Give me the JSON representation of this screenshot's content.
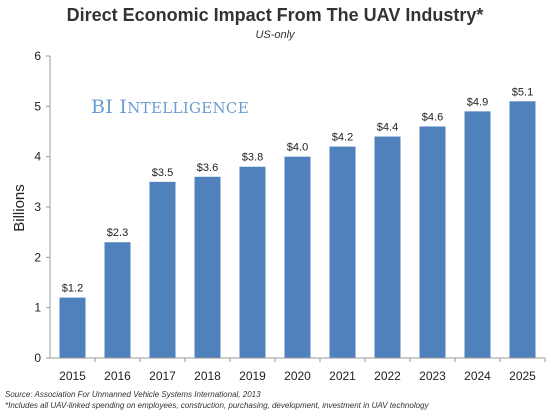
{
  "title": "Direct Economic Impact From The UAV Industry*",
  "subtitle": "US-only",
  "watermark": {
    "part1": "BI ",
    "part2": "I",
    "part3": "NTELLIGENCE"
  },
  "source": "Source: Association For Unmanned Vehicle Systems International, 2013",
  "footnote": "*Includes all UAV-linked spending on employees, construction, purchasing, development, investment in UAV technology",
  "colors": {
    "bar": "#4f81bd",
    "axis": "#999999"
  },
  "chart_data": {
    "type": "bar",
    "categories": [
      "2015",
      "2016",
      "2017",
      "2018",
      "2019",
      "2020",
      "2021",
      "2022",
      "2023",
      "2024",
      "2025"
    ],
    "values": [
      1.2,
      2.3,
      3.5,
      3.6,
      3.8,
      4.0,
      4.2,
      4.4,
      4.6,
      4.9,
      5.1
    ],
    "data_labels": [
      "$1.2",
      "$2.3",
      "$3.5",
      "$3.6",
      "$3.8",
      "$4.0",
      "$4.2",
      "$4.4",
      "$4.6",
      "$4.9",
      "$5.1"
    ],
    "title": "Direct Economic Impact From The UAV Industry*",
    "subtitle": "US-only",
    "xlabel": "",
    "ylabel": "Billions",
    "ylim": [
      0,
      6
    ],
    "yticks": [
      "0",
      "1",
      "2",
      "3",
      "4",
      "5",
      "6"
    ],
    "grid": false,
    "legend": "none"
  }
}
